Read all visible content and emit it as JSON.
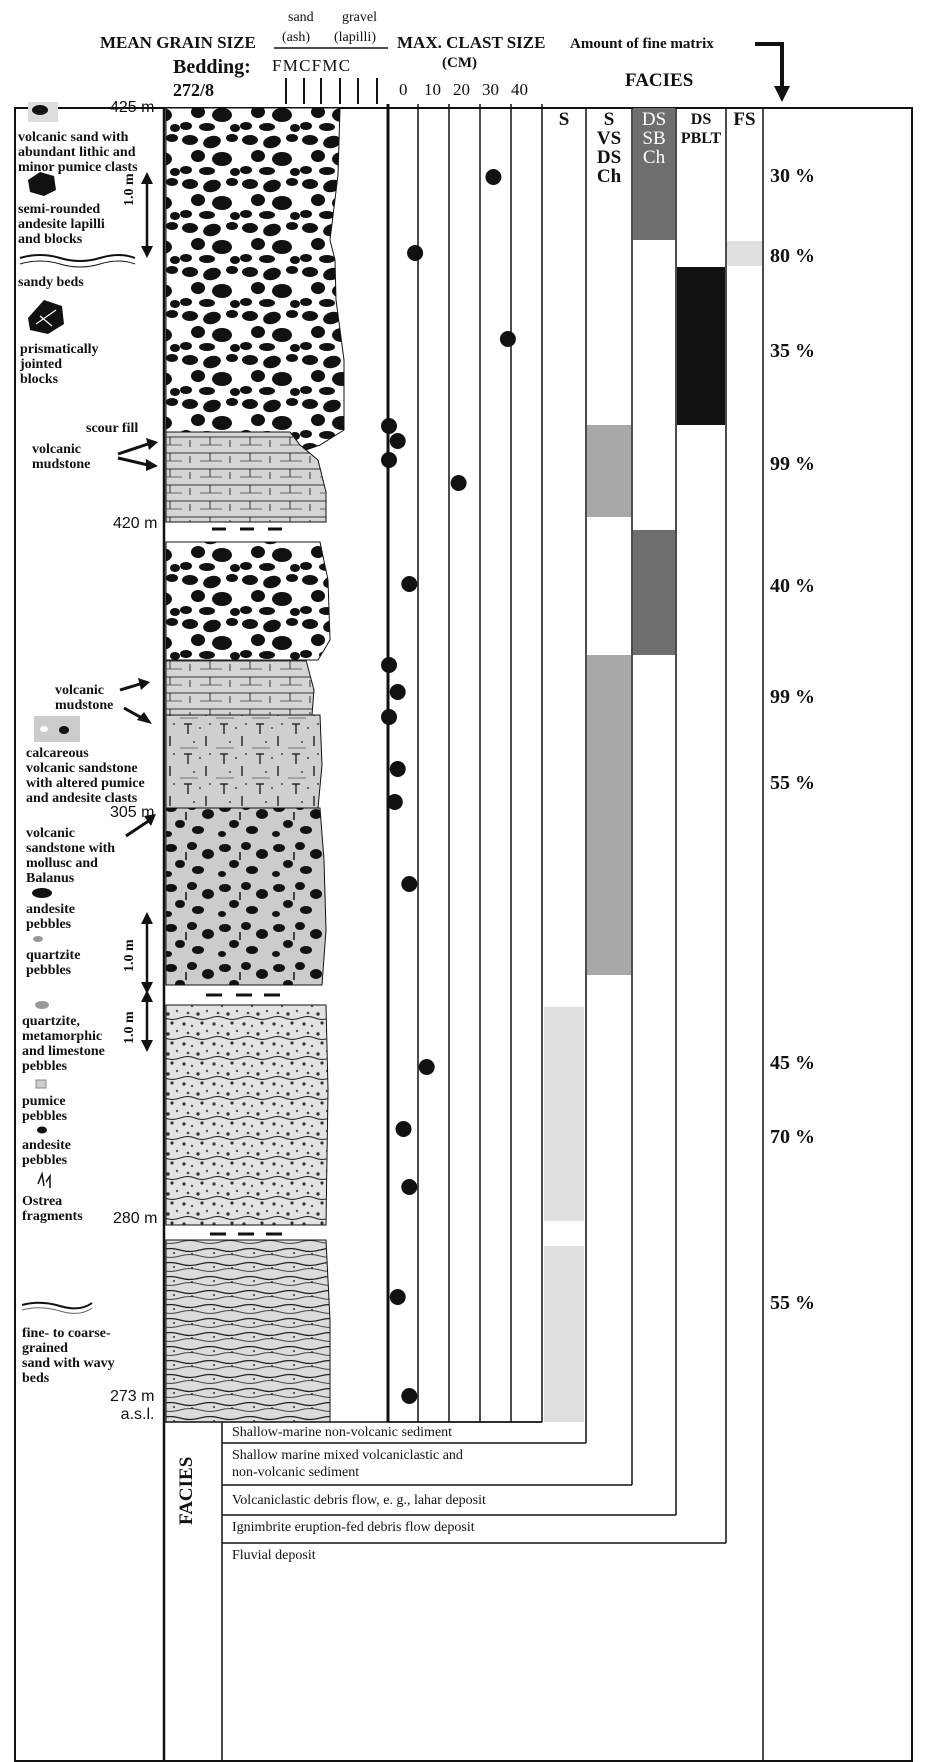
{
  "header": {
    "mean_grain_size": "MEAN GRAIN SIZE",
    "sand": "sand",
    "ash": "(ash)",
    "gravel": "gravel",
    "lapilli": "(lapilli)",
    "bedding_label": "Bedding:",
    "bedding_value": "272/8",
    "grain_classes": "F M C F M C",
    "max_clast": "MAX. CLAST SIZE",
    "cm": "(CM)",
    "scale_ticks": [
      "0",
      "10",
      "20",
      "30",
      "40"
    ],
    "fine_matrix": "Amount of fine matrix",
    "facies": "FACIES"
  },
  "facies_columns": [
    "S",
    "S\nVS\nDS\nCh",
    "DS\nSB\nCh",
    "DS\nPBLT",
    "FS"
  ],
  "elevations": [
    "425 m",
    "420 m",
    "305 m",
    "280 m",
    "273 m\na.s.l."
  ],
  "legend": [
    "volcanic sand with\nabundant lithic and\nminor pumice clasts",
    "semi-rounded\nandesite lapilli\nand blocks",
    "sandy beds",
    "prismatically\njointed\nblocks",
    "scour fill",
    "volcanic\nmudstone",
    "volcanic\nmudstone",
    "calcareous\nvolcanic sandstone\nwith altered pumice\nand andesite clasts",
    "volcanic\nsandstone with\nmollusc and\nBalanus",
    "andesite\npebbles",
    "quartzite\npebbles",
    "quartzite,\nmetamorphic\nand limestone\npebbles",
    "pumice\npebbles",
    "andesite\npebbles",
    "Ostrea\nfragments",
    "fine- to coarse-\ngrained\nsand with wavy\nbeds"
  ],
  "scale_bar": "1.0 m",
  "clast_sizes": [
    36,
    9,
    41,
    0,
    3,
    0,
    24,
    7,
    0,
    3,
    0,
    3,
    2,
    7,
    13,
    5,
    7,
    3,
    7
  ],
  "fine_matrix_pct": [
    "30 %",
    "80 %",
    "35 %",
    "99 %",
    "40 %",
    "99 %",
    "55 %",
    "45 %",
    "70 %",
    "55 %"
  ],
  "facies_key": {
    "title": "FACIES",
    "items": [
      "Shallow-marine non-volcanic sediment",
      "Shallow marine mixed volcaniclastic and\nnon-volcanic sediment",
      "Volcaniclastic debris flow, e. g., lahar deposit",
      "Ignimbrite eruption-fed debris flow deposit",
      "Fluvial deposit"
    ]
  }
}
